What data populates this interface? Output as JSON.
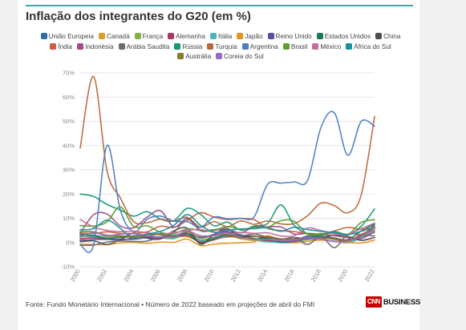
{
  "chart_data": {
    "type": "line",
    "title": "Inflação dos integrantes do G20 (em %)",
    "x": [
      2000,
      2001,
      2002,
      2003,
      2004,
      2005,
      2006,
      2007,
      2008,
      2009,
      2010,
      2011,
      2012,
      2013,
      2014,
      2015,
      2016,
      2017,
      2018,
      2019,
      2020,
      2021,
      2022
    ],
    "y_ticks": [
      "-10%",
      "0%",
      "10%",
      "20%",
      "30%",
      "40%",
      "50%",
      "60%",
      "70%"
    ],
    "y_tick_values": [
      -10,
      0,
      10,
      20,
      30,
      40,
      50,
      60,
      70
    ],
    "x_ticks": [
      "2000",
      "2002",
      "2004",
      "2006",
      "2008",
      "2010",
      "2012",
      "2014",
      "2016",
      "2018",
      "2020",
      "2022"
    ],
    "ylim": [
      -10,
      70
    ],
    "xlim": [
      2000,
      2022
    ],
    "grid": true,
    "legend_position": "top",
    "series": [
      {
        "name": "União Europeia",
        "color": "#2f6fa6",
        "values": [
          3.0,
          2.9,
          2.3,
          2.1,
          2.3,
          2.3,
          2.3,
          2.4,
          3.7,
          1.0,
          2.1,
          3.1,
          2.6,
          1.5,
          0.6,
          0.1,
          0.2,
          1.7,
          1.9,
          1.5,
          0.7,
          2.9,
          6.6
        ]
      },
      {
        "name": "Canadá",
        "color": "#d8a22b",
        "values": [
          2.7,
          2.5,
          2.3,
          2.7,
          1.8,
          2.2,
          2.0,
          2.1,
          2.4,
          0.3,
          1.8,
          2.9,
          1.5,
          0.9,
          1.9,
          1.1,
          1.4,
          1.6,
          2.3,
          1.9,
          0.7,
          3.4,
          5.6
        ]
      },
      {
        "name": "França",
        "color": "#83b14b",
        "values": [
          1.8,
          1.8,
          1.9,
          2.2,
          2.3,
          1.9,
          1.9,
          1.6,
          3.2,
          0.1,
          1.7,
          2.3,
          2.2,
          1.0,
          0.6,
          0.1,
          0.3,
          1.2,
          2.1,
          1.3,
          0.5,
          2.1,
          4.1
        ]
      },
      {
        "name": "Alemanha",
        "color": "#b0355b",
        "values": [
          1.4,
          1.9,
          1.4,
          1.0,
          1.8,
          1.9,
          1.8,
          2.3,
          2.8,
          0.2,
          1.1,
          2.5,
          2.1,
          1.6,
          0.8,
          0.7,
          0.4,
          1.7,
          1.9,
          1.4,
          0.4,
          3.2,
          5.5
        ]
      },
      {
        "name": "Itália",
        "color": "#49b7b5",
        "values": [
          2.6,
          2.3,
          2.6,
          2.8,
          2.3,
          2.2,
          2.2,
          2.0,
          3.5,
          0.8,
          1.6,
          2.9,
          3.3,
          1.2,
          0.2,
          0.1,
          -0.1,
          1.3,
          1.2,
          0.6,
          -0.1,
          1.9,
          5.3
        ]
      },
      {
        "name": "Japão",
        "color": "#e8921e",
        "values": [
          -0.7,
          -0.8,
          -0.9,
          -0.2,
          0.0,
          -0.3,
          0.2,
          0.1,
          1.4,
          -1.3,
          -0.7,
          -0.3,
          -0.1,
          0.3,
          2.8,
          0.8,
          -0.1,
          0.5,
          1.0,
          0.5,
          0.0,
          -0.2,
          1.0
        ]
      },
      {
        "name": "Reino Unido",
        "color": "#5a4f9e",
        "values": [
          0.8,
          1.2,
          1.3,
          1.4,
          1.3,
          2.1,
          2.3,
          2.3,
          3.6,
          2.2,
          3.3,
          4.5,
          2.8,
          2.6,
          1.5,
          0.0,
          0.7,
          2.7,
          2.5,
          1.8,
          0.9,
          2.6,
          7.4
        ]
      },
      {
        "name": "Estados Unidos",
        "color": "#1b7a50",
        "values": [
          3.4,
          2.8,
          1.6,
          2.3,
          2.7,
          3.4,
          3.2,
          2.9,
          3.8,
          -0.3,
          1.6,
          3.1,
          2.1,
          1.5,
          1.6,
          0.1,
          1.3,
          2.1,
          2.4,
          1.8,
          1.2,
          4.7,
          7.7
        ]
      },
      {
        "name": "China",
        "color": "#4d4d4d",
        "values": [
          0.3,
          0.7,
          -0.8,
          1.2,
          3.9,
          1.8,
          1.5,
          4.8,
          5.9,
          -0.7,
          3.3,
          5.4,
          2.6,
          2.6,
          2.0,
          1.4,
          2.0,
          1.6,
          2.1,
          2.9,
          2.5,
          0.9,
          2.1
        ]
      },
      {
        "name": "Índia",
        "color": "#d35a3c",
        "values": [
          4.0,
          3.7,
          4.4,
          3.8,
          3.8,
          4.4,
          6.7,
          6.2,
          9.1,
          12.3,
          10.5,
          9.5,
          9.9,
          9.4,
          5.8,
          4.9,
          4.5,
          3.6,
          3.4,
          4.8,
          6.2,
          5.5,
          6.1
        ]
      },
      {
        "name": "Indonésia",
        "color": "#a24a8c",
        "values": [
          3.7,
          11.5,
          11.8,
          6.8,
          6.1,
          10.5,
          13.1,
          6.4,
          9.8,
          4.8,
          5.1,
          5.3,
          4.0,
          6.4,
          6.4,
          6.4,
          3.5,
          3.8,
          3.3,
          2.8,
          2.0,
          1.6,
          4.6
        ]
      },
      {
        "name": "Arábia Saudita",
        "color": "#6b6b6b",
        "values": [
          -1.1,
          -1.1,
          0.2,
          0.6,
          0.4,
          0.6,
          2.3,
          4.1,
          9.9,
          5.1,
          5.3,
          5.8,
          2.9,
          3.5,
          2.2,
          1.2,
          2.0,
          -0.8,
          2.5,
          -2.1,
          3.4,
          3.1,
          2.7
        ]
      },
      {
        "name": "Rússia",
        "color": "#129a75",
        "values": [
          20.0,
          19.0,
          15.7,
          13.4,
          10.9,
          12.7,
          9.7,
          9.0,
          14.1,
          11.6,
          6.9,
          8.4,
          5.1,
          6.8,
          7.8,
          15.5,
          7.0,
          3.7,
          2.9,
          4.5,
          3.4,
          6.7,
          13.8
        ]
      },
      {
        "name": "Turquia",
        "color": "#b8683a",
        "values": [
          39.0,
          68.5,
          29.7,
          18.4,
          8.6,
          8.2,
          9.6,
          8.8,
          10.4,
          6.3,
          8.6,
          6.5,
          8.9,
          7.5,
          8.9,
          7.7,
          7.8,
          11.1,
          16.3,
          15.2,
          12.3,
          19.6,
          52.0
        ]
      },
      {
        "name": "Argentina",
        "color": "#4a7fc0",
        "values": [
          -0.9,
          -1.1,
          40.0,
          13.4,
          4.4,
          9.6,
          10.9,
          8.8,
          8.6,
          6.3,
          10.5,
          9.8,
          10.0,
          10.6,
          24.0,
          24.5,
          25.0,
          25.7,
          47.6,
          53.5,
          36.0,
          50.0,
          48.0
        ]
      },
      {
        "name": "Brasil",
        "color": "#5e9e2e",
        "values": [
          7.0,
          6.8,
          8.5,
          14.7,
          6.6,
          6.9,
          4.2,
          3.6,
          5.7,
          4.9,
          5.0,
          6.6,
          5.4,
          6.2,
          6.3,
          9.0,
          8.7,
          3.4,
          3.7,
          3.7,
          3.2,
          8.3,
          9.4
        ]
      },
      {
        "name": "México",
        "color": "#c56a9a",
        "values": [
          9.5,
          6.4,
          5.0,
          4.5,
          4.7,
          4.0,
          3.6,
          4.0,
          5.1,
          5.3,
          4.2,
          3.4,
          4.1,
          3.8,
          4.0,
          2.7,
          2.8,
          6.0,
          4.9,
          3.6,
          3.4,
          5.7,
          8.0
        ]
      },
      {
        "name": "África do Sul",
        "color": "#1c8fa2",
        "values": [
          5.3,
          5.7,
          9.2,
          5.8,
          1.4,
          3.4,
          4.6,
          7.1,
          11.5,
          7.1,
          4.3,
          5.0,
          5.6,
          5.7,
          6.1,
          4.6,
          6.3,
          5.3,
          4.6,
          4.1,
          3.3,
          4.6,
          6.5
        ]
      },
      {
        "name": "Austrália",
        "color": "#8a7a2a",
        "values": [
          4.5,
          4.4,
          3.0,
          2.8,
          2.3,
          2.7,
          3.5,
          2.3,
          4.4,
          1.8,
          2.9,
          3.3,
          1.8,
          2.4,
          2.5,
          1.5,
          1.3,
          2.0,
          1.9,
          1.6,
          0.9,
          2.8,
          6.5
        ]
      },
      {
        "name": "Coreia do Sul",
        "color": "#9b6bc2",
        "values": [
          2.3,
          4.1,
          2.8,
          3.5,
          3.6,
          2.8,
          2.2,
          2.5,
          4.7,
          2.8,
          2.9,
          4.0,
          2.2,
          1.3,
          1.3,
          0.7,
          1.0,
          1.9,
          1.5,
          0.4,
          0.5,
          2.5,
          5.5
        ]
      }
    ]
  },
  "source": "Fonte: Fundo Monetário Internacional • Número de 2022 baseado em projeções de abril do FMI",
  "brand": {
    "badge": "CNN",
    "word": "BUSINESS"
  }
}
